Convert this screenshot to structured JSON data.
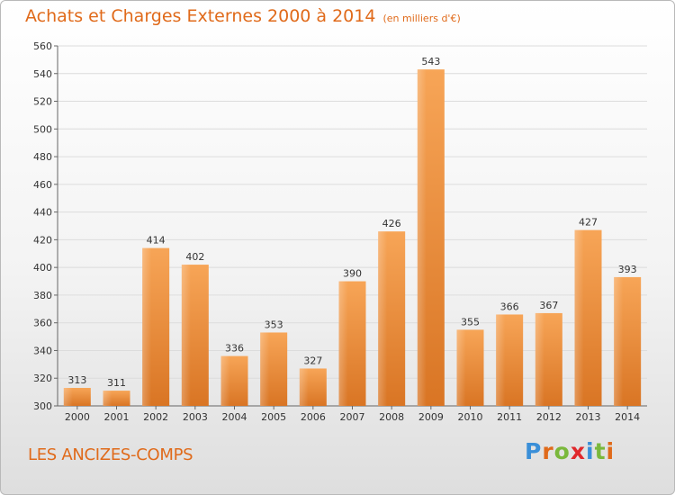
{
  "header": {
    "title": "Achats et Charges Externes 2000 à 2014",
    "subtitle": "(en milliers d'€)"
  },
  "footer": {
    "commune": "LES ANCIZES-COMPS",
    "logo": [
      "P",
      "r",
      "o",
      "x",
      "i",
      "t",
      "i"
    ],
    "logo_colors": [
      "#3a8fd8",
      "#e06a1a",
      "#7ab83c",
      "#e0282b",
      "#3a8fd8",
      "#7ab83c",
      "#e06a1a"
    ]
  },
  "colors": {
    "bar_light": "#f7a557",
    "bar_dark": "#d97524",
    "grid": "#dcdcdc",
    "accent": "#e06a1a"
  },
  "chart_data": {
    "type": "bar",
    "categories": [
      "2000",
      "2001",
      "2002",
      "2003",
      "2004",
      "2005",
      "2006",
      "2007",
      "2008",
      "2009",
      "2010",
      "2011",
      "2012",
      "2013",
      "2014"
    ],
    "values": [
      313,
      311,
      414,
      402,
      336,
      353,
      327,
      390,
      426,
      543,
      355,
      366,
      367,
      427,
      393
    ],
    "ylim": [
      300,
      560
    ],
    "yticks": [
      300,
      320,
      340,
      360,
      380,
      400,
      420,
      440,
      460,
      480,
      500,
      520,
      540,
      560
    ],
    "grid": true
  }
}
